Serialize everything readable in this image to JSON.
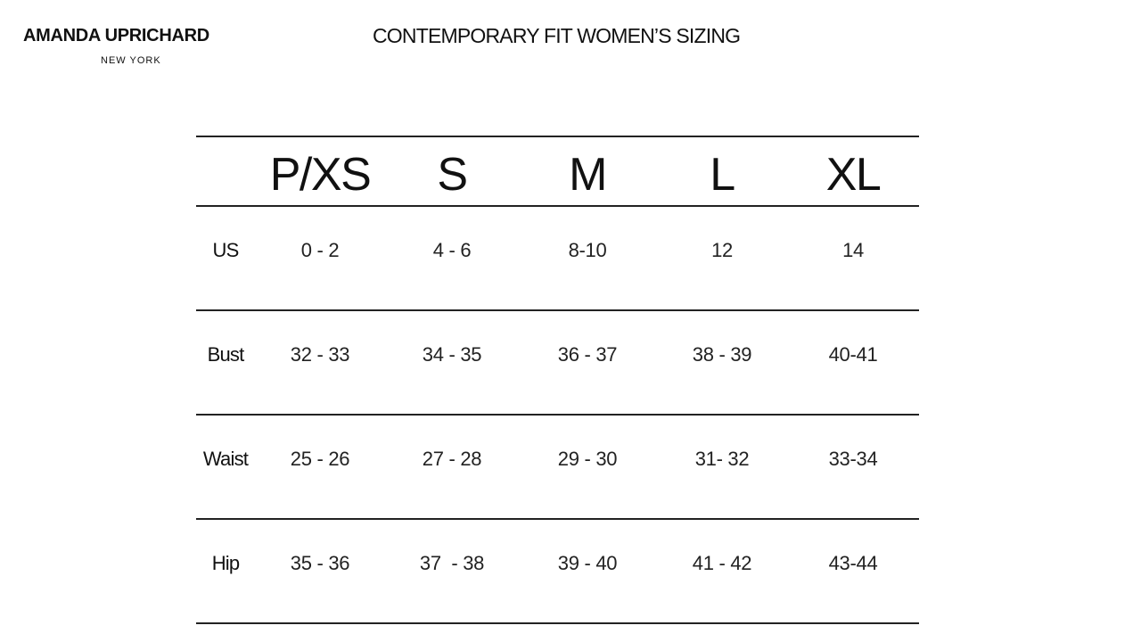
{
  "brand": {
    "name": "AMANDA UPRICHARD",
    "city": "NEW YORK"
  },
  "title": "CONTEMPORARY FIT WOMEN’S SIZING",
  "table": {
    "headers": [
      "P/XS",
      "S",
      "M",
      "L",
      "XL"
    ],
    "rows": [
      {
        "label": "US",
        "values": [
          "0 - 2",
          "4 - 6",
          "8-10",
          "12",
          "14"
        ]
      },
      {
        "label": "Bust",
        "values": [
          "32 - 33",
          "34 - 35",
          "36 - 37",
          "38 - 39",
          "40-41"
        ]
      },
      {
        "label": "Waist",
        "values": [
          "25 - 26",
          "27 - 28",
          "29 - 30",
          "31- 32",
          "33-34"
        ]
      },
      {
        "label": "Hip",
        "values": [
          "35 - 36",
          "37  - 38",
          "39 - 40",
          "41 - 42",
          "43-44"
        ]
      }
    ]
  }
}
